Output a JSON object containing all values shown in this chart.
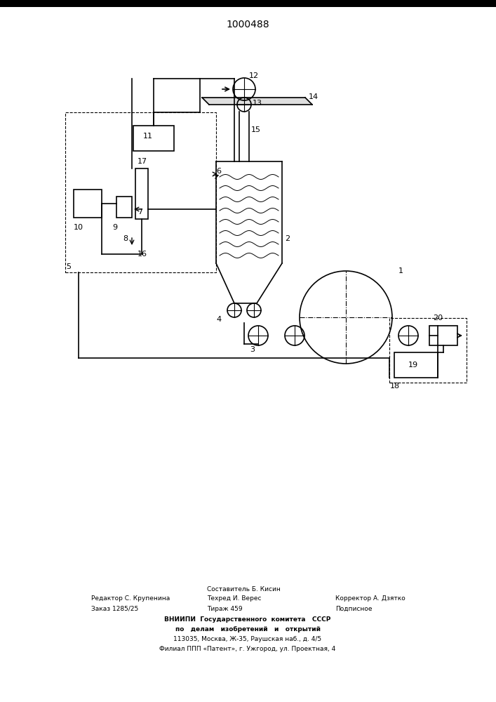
{
  "title": "1000488",
  "bg_color": "#ffffff",
  "line_color": "#000000",
  "footer_col1_line1": "Редактор С. Крупенина",
  "footer_col1_line2": "Заказ 1285/25",
  "footer_col2_line0": "Составитель Б. Кисин",
  "footer_col2_line1": "Техред И. Верес",
  "footer_col2_line2": "Тираж 459",
  "footer_col3_line1": "Корректор А. Дзятко",
  "footer_col3_line2": "Подписное",
  "footer_center1": "ВНИИПИ  Государственного  комитета   СССР",
  "footer_center2": "по   делам   изобретений   и   открытий",
  "footer_center3": "113035, Москва, Ж-35, Раушская наб., д. 4/5",
  "footer_center4": "Филиал ППП «Патент», г. Ужгород, ул. Проектная, 4"
}
